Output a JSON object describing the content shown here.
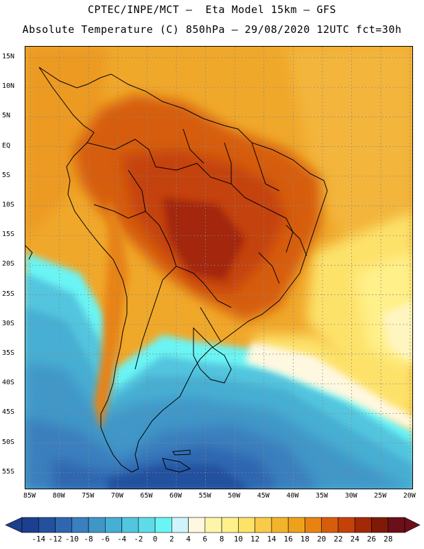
{
  "header": {
    "line1": "CPTEC/INPE/MCT —  Eta Model 15km — GFS",
    "line2": "Absolute Temperature (C) 850hPa — 29/08/2020 12UTC fct=30h"
  },
  "map": {
    "lat_labels": [
      "15N",
      "10N",
      "5N",
      "EQ",
      "5S",
      "10S",
      "15S",
      "20S",
      "25S",
      "30S",
      "35S",
      "40S",
      "45S",
      "50S",
      "55S"
    ],
    "lon_labels": [
      "85W",
      "80W",
      "75W",
      "70W",
      "65W",
      "60W",
      "55W",
      "50W",
      "45W",
      "40W",
      "35W",
      "30W",
      "25W",
      "20W"
    ],
    "gridlines": "dotted",
    "borders_color": "#000000"
  },
  "colorbar": {
    "labels": [
      "-14",
      "-12",
      "-10",
      "-8",
      "-6",
      "-4",
      "-2",
      "0",
      "2",
      "4",
      "6",
      "8",
      "10",
      "12",
      "14",
      "16",
      "18",
      "20",
      "22",
      "24",
      "26",
      "28"
    ],
    "colors": [
      "#1d3f8f",
      "#24519f",
      "#2e66b0",
      "#3a7fbe",
      "#3f97c8",
      "#46afd3",
      "#53c5de",
      "#5fdbe8",
      "#6af4f4",
      "#cdf5fb",
      "#fff8e0",
      "#fff5a8",
      "#fff08a",
      "#fde26a",
      "#f8cb48",
      "#f2b42a",
      "#eea21c",
      "#e88312",
      "#d65d0c",
      "#c4420a",
      "#a32808",
      "#7d1a08",
      "#6b0f1a"
    ]
  }
}
